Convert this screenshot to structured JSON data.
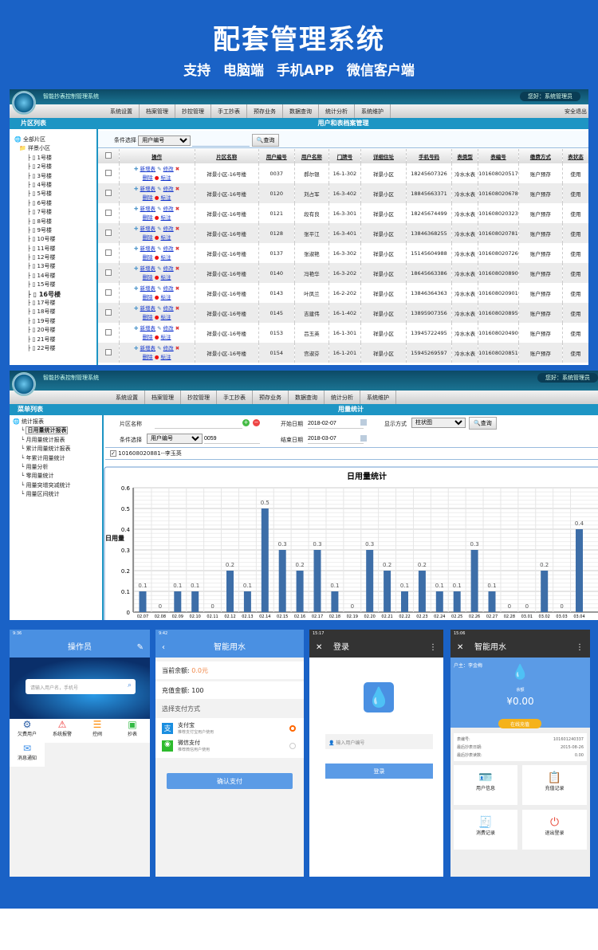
{
  "banner": {
    "title": "配套管理系统",
    "subtitle": "支持 电脑端 手机APP 微信客户端"
  },
  "app": {
    "title": "智能抄表控制管理系统",
    "greeting": "您好：系统管理员",
    "logout": "安全退出",
    "menu": [
      "系统设置",
      "档案管理",
      "抄控管理",
      "手工抄表",
      "预存业务",
      "数据查询",
      "统计分析",
      "系统维护"
    ]
  },
  "screen1": {
    "sidebar_title": "片区列表",
    "page_title": "用户和表档案管理",
    "tree_root": "全部片区",
    "tree_community": "祥景小区",
    "buildings": [
      "1号楼",
      "2号楼",
      "3号楼",
      "4号楼",
      "5号楼",
      "6号楼",
      "7号楼",
      "8号楼",
      "9号楼",
      "10号楼",
      "11号楼",
      "12号楼",
      "13号楼",
      "14号楼",
      "15号楼",
      "16号楼",
      "17号楼",
      "18号楼",
      "19号楼",
      "20号楼",
      "21号楼",
      "22号楼"
    ],
    "selected_building": "16号楼",
    "filter_label": "条件选择",
    "filter_value": "用户编号",
    "search_value": "",
    "query_button": "查询",
    "ops": {
      "new_meter": "新增表",
      "edit": "修改",
      "delete": "删除",
      "mark": "标注"
    },
    "columns": [
      "操作",
      "片区名称",
      "用户编号",
      "用户名称",
      "门牌号",
      "详细住址",
      "手机号码",
      "表类型",
      "表编号",
      "缴费方式",
      "表状态"
    ],
    "rows": [
      [
        "祥景小区-16号楼",
        "0037",
        "郝尔银",
        "16-1-302",
        "祥景小区",
        "18245607326",
        "冷水水表",
        "101608020517",
        "账户预存",
        "使用"
      ],
      [
        "祥景小区-16号楼",
        "0120",
        "刘占军",
        "16-3-402",
        "祥景小区",
        "18845663371",
        "冷水水表",
        "101608020678",
        "账户预存",
        "使用"
      ],
      [
        "祥景小区-16号楼",
        "0121",
        "段有良",
        "16-3-301",
        "祥景小区",
        "18245674499",
        "冷水水表",
        "101608020323",
        "账户预存",
        "使用"
      ],
      [
        "祥景小区-16号楼",
        "0128",
        "张平江",
        "16-3-401",
        "祥景小区",
        "13846368255",
        "冷水水表",
        "101608020781",
        "账户预存",
        "使用"
      ],
      [
        "祥景小区-16号楼",
        "0137",
        "张淑艳",
        "16-3-302",
        "祥景小区",
        "15145604988",
        "冷水水表",
        "101608020726",
        "账户预存",
        "使用"
      ],
      [
        "祥景小区-16号楼",
        "0140",
        "冯艳华",
        "16-3-202",
        "祥景小区",
        "18645663386",
        "冷水水表",
        "101608020890",
        "账户预存",
        "使用"
      ],
      [
        "祥景小区-16号楼",
        "0143",
        "叶凤兰",
        "16-2-202",
        "祥景小区",
        "13846364363",
        "冷水水表",
        "101608020901",
        "账户预存",
        "使用"
      ],
      [
        "祥景小区-16号楼",
        "0145",
        "吉建伟",
        "16-1-402",
        "祥景小区",
        "13895907356",
        "冷水水表",
        "101608020895",
        "账户预存",
        "使用"
      ],
      [
        "祥景小区-16号楼",
        "0153",
        "吕玉英",
        "16-1-301",
        "祥景小区",
        "13945722495",
        "冷水水表",
        "101608020490",
        "账户预存",
        "使用"
      ],
      [
        "祥景小区-16号楼",
        "0154",
        "宫淑芬",
        "16-1-201",
        "祥景小区",
        "15945269597",
        "冷水水表",
        "101608020851",
        "账户预存",
        "使用"
      ]
    ]
  },
  "screen2": {
    "sidebar_title": "菜单列表",
    "page_title": "用量统计",
    "tree_root": "统计报表",
    "reports": [
      "日用量统计报表",
      "月用量统计报表",
      "累计用量统计报表",
      "年累计用量统计",
      "用量分析",
      "零用量统计",
      "用量突增突减统计",
      "用量区间统计"
    ],
    "area_label": "片区名称",
    "area_value": "",
    "filter_label": "条件选择",
    "filter_value": "用户编号",
    "filter_input": "0059",
    "start_label": "开始日期",
    "start_date": "2018-02-07",
    "end_label": "结束日期",
    "end_date": "2018-03-07",
    "display_label": "显示方式",
    "display_value": "柱状图",
    "query_button": "查询",
    "meter_checked": "101608020881--李玉英"
  },
  "chart_data": {
    "type": "bar",
    "title": "日用量统计",
    "ylabel": "日用量",
    "xlabel": "",
    "ylim": [
      0,
      0.6
    ],
    "yticks": [
      0,
      0.1,
      0.2,
      0.3,
      0.4,
      0.5,
      0.6
    ],
    "grid": true,
    "bar_color": "#3d6ea8",
    "categories": [
      "2018.02.07",
      "2018.02.08",
      "2018.02.09",
      "2018.02.10",
      "2018.02.11",
      "2018.02.12",
      "2018.02.13",
      "2018.02.14",
      "2018.02.15",
      "2018.02.16",
      "2018.02.17",
      "2018.02.18",
      "2018.02.19",
      "2018.02.20",
      "2018.02.21",
      "2018.02.22",
      "2018.02.23",
      "2018.02.24",
      "2018.02.25",
      "2018.02.26",
      "2018.02.27",
      "2018.02.28",
      "2018.03.01",
      "2018.03.02",
      "2018.03.03",
      "2018.03.04"
    ],
    "values": [
      0.1,
      0,
      0.1,
      0.1,
      0,
      0.2,
      0.1,
      0.5,
      0.3,
      0.2,
      0.3,
      0.1,
      0,
      0.3,
      0.2,
      0.1,
      0.2,
      0.1,
      0.1,
      0.3,
      0.1,
      0,
      0,
      0.2,
      0,
      0.4
    ]
  },
  "phone1": {
    "time": "9:36",
    "title": "操作员",
    "search_placeholder": "请输入用户名，手机号",
    "tiles": [
      "欠费用户",
      "系统报警",
      "控阀",
      "抄表",
      "消息通知"
    ]
  },
  "phone2": {
    "time": "9:42",
    "title": "智能用水",
    "balance_label": "当前余额:",
    "balance_value": "0.0元",
    "recharge_label": "充值金额:",
    "recharge_value": "100",
    "pay_method_label": "选择支付方式",
    "alipay": "支付宝",
    "alipay_desc": "推荐支付宝用户使用",
    "wechat": "微信支付",
    "wechat_desc": "推荐微信用户使用",
    "confirm": "确认支付",
    "selected": "alipay"
  },
  "phone3": {
    "time": "15:17",
    "title": "登录",
    "user_placeholder": "输入用户编号",
    "login": "登录"
  },
  "phone4": {
    "time": "15:06",
    "title": "智能用水",
    "owner": "户主：李金梅",
    "balance_label": "余额",
    "balance": "¥0.00",
    "recharge": "在线充值",
    "meter_no_label": "表编号:",
    "meter_no": "101601240337",
    "last_date_label": "最后抄表日期:",
    "last_date": "2015-08-26",
    "last_read_label": "最后抄表读数:",
    "last_read": "0.00",
    "tiles": [
      "用户信息",
      "充值记录",
      "消费记录",
      "退出登录"
    ]
  }
}
